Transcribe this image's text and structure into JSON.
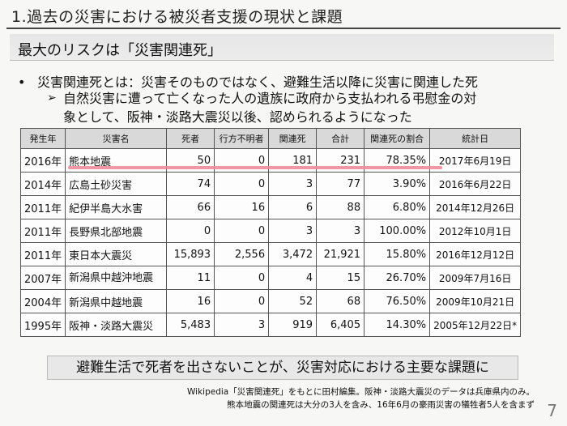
{
  "slide": {
    "title": "1.過去の災害における被災者支援の現状と課題",
    "subtitle": "最大のリスクは「災害関連死」",
    "bullet": "災害関連死とは：災害そのものではなく、避難生活以降に災害に関連した死",
    "sub_line1": "自然災害に遭って亡くなった人の遺族に政府から支払われる弔慰金の対",
    "sub_line2": "象として、阪神・淡路大震災以後、認められるようになった",
    "conclusion": "避難生活で死者を出さないことが、災害対応における主要な課題に",
    "footnote1": "Wikipedia「災害関連死」をもとに田村編集。阪神・淡路大震災のデータは兵庫県内のみ。",
    "footnote2": "熊本地震の関連死は大分の3人を含み、16年6月の豪雨災害の犠牲者5人を含まず",
    "page_number": "7"
  },
  "table": {
    "headers": [
      "発生年",
      "災害名",
      "死者",
      "行方不明者",
      "関連死",
      "合計",
      "関連死の割合",
      "統計日"
    ],
    "rows": [
      {
        "year": "2016年",
        "name": "熊本地震",
        "deaths": "50",
        "missing": "0",
        "related": "181",
        "total": "231",
        "ratio": "78.35%",
        "date": "2017年6月19日"
      },
      {
        "year": "2014年",
        "name": "広島土砂災害",
        "deaths": "74",
        "missing": "0",
        "related": "3",
        "total": "77",
        "ratio": "3.90%",
        "date": "2016年6月22日"
      },
      {
        "year": "2011年",
        "name": "紀伊半島大水害",
        "deaths": "66",
        "missing": "16",
        "related": "6",
        "total": "88",
        "ratio": "6.80%",
        "date": "2014年12月26日"
      },
      {
        "year": "2011年",
        "name": "長野県北部地震",
        "deaths": "0",
        "missing": "0",
        "related": "3",
        "total": "3",
        "ratio": "100.00%",
        "date": "2012年10月1日"
      },
      {
        "year": "2011年",
        "name": "東日本大震災",
        "deaths": "15,893",
        "missing": "2,556",
        "related": "3,472",
        "total": "21,921",
        "ratio": "15.80%",
        "date": "2016年12月12日"
      },
      {
        "year": "2007年",
        "name": "新潟県中越沖地震",
        "deaths": "11",
        "missing": "0",
        "related": "4",
        "total": "15",
        "ratio": "26.70%",
        "date": "2009年7月16日"
      },
      {
        "year": "2004年",
        "name": "新潟県中越地震",
        "deaths": "16",
        "missing": "0",
        "related": "52",
        "total": "68",
        "ratio": "76.50%",
        "date": "2009年10月21日"
      },
      {
        "year": "1995年",
        "name": "阪神・淡路大震災",
        "deaths": "5,483",
        "missing": "3",
        "related": "919",
        "total": "6,405",
        "ratio": "14.30%",
        "date": "2005年12月22日*"
      }
    ]
  }
}
